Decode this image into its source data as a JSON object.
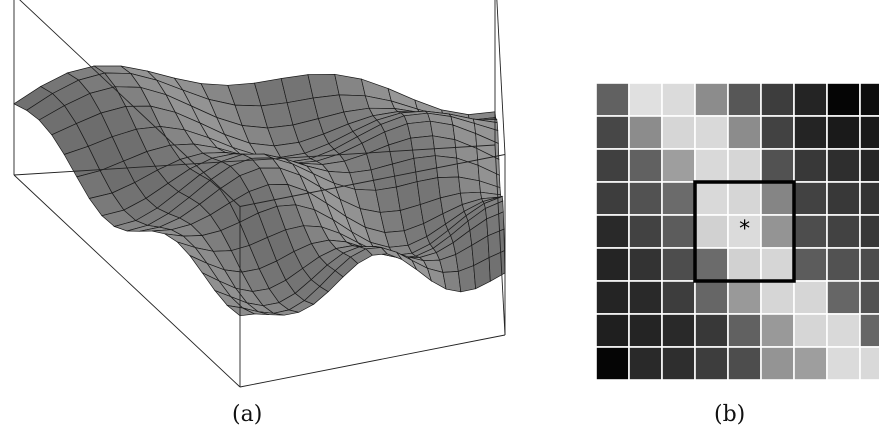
{
  "captions": {
    "a": "(a)",
    "b": "(b)"
  },
  "marker": {
    "symbol": "*",
    "row": 4,
    "col": 4
  },
  "window": {
    "row_start": 3,
    "row_end": 5,
    "col_start": 3,
    "col_end": 5
  },
  "colors": {
    "surface": "#7d7d7d",
    "mesh": "#1a1a1a",
    "box": "#000000"
  },
  "grid": {
    "rows": 9,
    "cols": 9,
    "values": [
      [
        0.38,
        0.88,
        0.86,
        0.55,
        0.34,
        0.24,
        0.14,
        0.02,
        0.05
      ],
      [
        0.28,
        0.55,
        0.84,
        0.85,
        0.55,
        0.26,
        0.14,
        0.1,
        0.1
      ],
      [
        0.25,
        0.38,
        0.62,
        0.85,
        0.84,
        0.32,
        0.22,
        0.18,
        0.15
      ],
      [
        0.24,
        0.32,
        0.42,
        0.85,
        0.84,
        0.52,
        0.26,
        0.22,
        0.2
      ],
      [
        0.16,
        0.26,
        0.36,
        0.82,
        0.86,
        0.58,
        0.3,
        0.26,
        0.22
      ],
      [
        0.14,
        0.2,
        0.3,
        0.42,
        0.82,
        0.84,
        0.36,
        0.32,
        0.3
      ],
      [
        0.14,
        0.16,
        0.24,
        0.4,
        0.6,
        0.84,
        0.84,
        0.4,
        0.32
      ],
      [
        0.12,
        0.14,
        0.16,
        0.22,
        0.38,
        0.6,
        0.84,
        0.85,
        0.4
      ],
      [
        0.02,
        0.16,
        0.18,
        0.24,
        0.3,
        0.58,
        0.62,
        0.86,
        0.85
      ]
    ]
  }
}
